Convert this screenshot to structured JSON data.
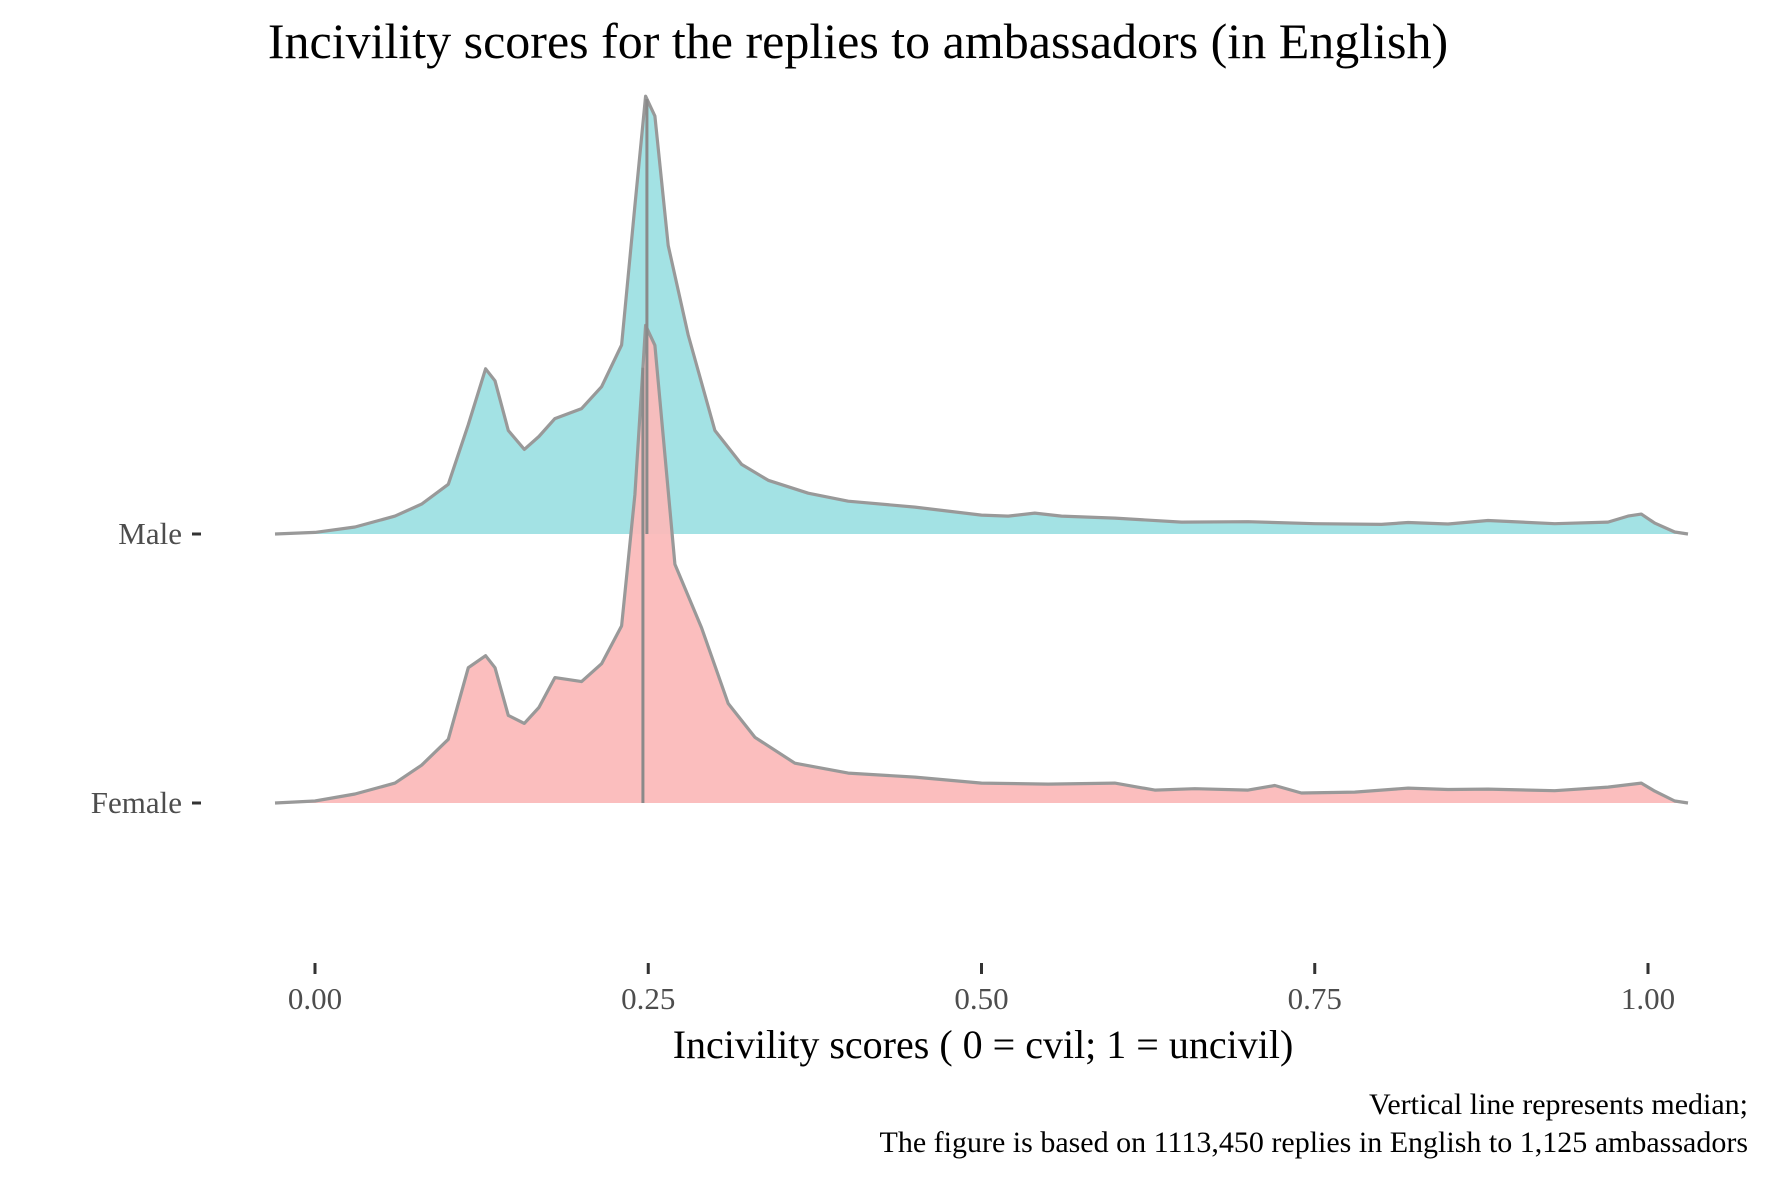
{
  "chart_data": {
    "type": "area",
    "subtype": "ridgeline-density",
    "title": "Incivility scores for the replies to ambassadors (in English)",
    "xlabel": "Incivility scores ( 0 = cvil; 1 = uncivil)",
    "ylabel": "",
    "caption_lines": [
      "Vertical line represents median;",
      "The figure is based on 1113,450 replies in English to 1,125 ambassadors"
    ],
    "xlim": [
      -0.03,
      1.03
    ],
    "x_ticks": [
      0.0,
      0.25,
      0.5,
      0.75,
      1.0
    ],
    "x_tick_labels": [
      "0.00",
      "0.25",
      "0.50",
      "0.75",
      "1.00"
    ],
    "y_categories": [
      "Female",
      "Male"
    ],
    "grid": false,
    "legend": "none",
    "outline_color": "#999999",
    "series": [
      {
        "name": "Male",
        "color": "#9ee0e3",
        "median": 0.249,
        "density": [
          [
            -0.03,
            0.0
          ],
          [
            0.0,
            0.08
          ],
          [
            0.03,
            0.35
          ],
          [
            0.06,
            0.9
          ],
          [
            0.08,
            1.5
          ],
          [
            0.1,
            2.5
          ],
          [
            0.115,
            5.5
          ],
          [
            0.128,
            8.3
          ],
          [
            0.135,
            7.7
          ],
          [
            0.145,
            5.2
          ],
          [
            0.157,
            4.25
          ],
          [
            0.168,
            4.9
          ],
          [
            0.18,
            5.8
          ],
          [
            0.2,
            6.3
          ],
          [
            0.215,
            7.4
          ],
          [
            0.23,
            9.5
          ],
          [
            0.24,
            16.5
          ],
          [
            0.248,
            22.0
          ],
          [
            0.255,
            21.0
          ],
          [
            0.265,
            14.5
          ],
          [
            0.28,
            10.0
          ],
          [
            0.3,
            5.2
          ],
          [
            0.32,
            3.5
          ],
          [
            0.34,
            2.7
          ],
          [
            0.37,
            2.05
          ],
          [
            0.4,
            1.65
          ],
          [
            0.45,
            1.35
          ],
          [
            0.5,
            0.95
          ],
          [
            0.52,
            0.9
          ],
          [
            0.54,
            1.05
          ],
          [
            0.56,
            0.9
          ],
          [
            0.6,
            0.8
          ],
          [
            0.65,
            0.6
          ],
          [
            0.7,
            0.62
          ],
          [
            0.75,
            0.52
          ],
          [
            0.8,
            0.48
          ],
          [
            0.82,
            0.58
          ],
          [
            0.85,
            0.5
          ],
          [
            0.88,
            0.68
          ],
          [
            0.93,
            0.52
          ],
          [
            0.97,
            0.6
          ],
          [
            0.985,
            0.9
          ],
          [
            0.995,
            1.0
          ],
          [
            1.005,
            0.55
          ],
          [
            1.02,
            0.1
          ],
          [
            1.03,
            0.0
          ]
        ]
      },
      {
        "name": "Female",
        "color": "#fbbaba",
        "median": 0.246,
        "density": [
          [
            -0.03,
            0.0
          ],
          [
            0.0,
            0.1
          ],
          [
            0.03,
            0.45
          ],
          [
            0.06,
            1.0
          ],
          [
            0.08,
            1.9
          ],
          [
            0.1,
            3.2
          ],
          [
            0.115,
            6.8
          ],
          [
            0.128,
            7.4
          ],
          [
            0.135,
            6.8
          ],
          [
            0.145,
            4.4
          ],
          [
            0.157,
            4.0
          ],
          [
            0.168,
            4.8
          ],
          [
            0.18,
            6.3
          ],
          [
            0.19,
            6.2
          ],
          [
            0.2,
            6.1
          ],
          [
            0.215,
            7.0
          ],
          [
            0.23,
            8.9
          ],
          [
            0.24,
            15.5
          ],
          [
            0.248,
            24.0
          ],
          [
            0.255,
            23.0
          ],
          [
            0.27,
            12.0
          ],
          [
            0.29,
            8.8
          ],
          [
            0.31,
            5.0
          ],
          [
            0.33,
            3.3
          ],
          [
            0.36,
            2.0
          ],
          [
            0.4,
            1.5
          ],
          [
            0.45,
            1.3
          ],
          [
            0.5,
            1.0
          ],
          [
            0.55,
            0.95
          ],
          [
            0.6,
            1.0
          ],
          [
            0.63,
            0.65
          ],
          [
            0.66,
            0.72
          ],
          [
            0.7,
            0.65
          ],
          [
            0.72,
            0.88
          ],
          [
            0.74,
            0.5
          ],
          [
            0.78,
            0.55
          ],
          [
            0.82,
            0.75
          ],
          [
            0.85,
            0.68
          ],
          [
            0.88,
            0.7
          ],
          [
            0.93,
            0.62
          ],
          [
            0.97,
            0.8
          ],
          [
            0.995,
            1.0
          ],
          [
            1.005,
            0.6
          ],
          [
            1.02,
            0.1
          ],
          [
            1.03,
            0.0
          ]
        ]
      }
    ]
  }
}
